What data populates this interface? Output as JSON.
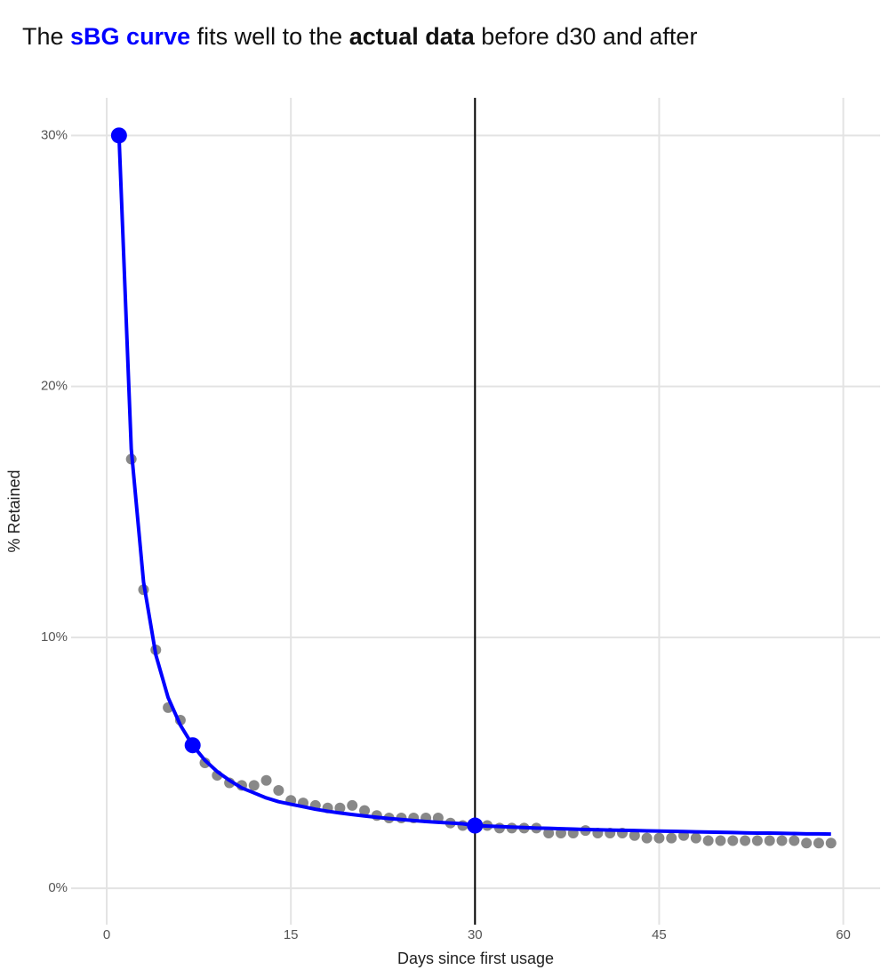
{
  "chart_data": {
    "type": "line",
    "title_parts": [
      {
        "text": "The "
      },
      {
        "text": "sBG curve",
        "bold": true,
        "color": "#0000ff"
      },
      {
        "text": " fits well to the "
      },
      {
        "text": "actual data",
        "bold": true
      },
      {
        "text": " before d30 and after"
      }
    ],
    "x_label": "Days since first usage",
    "y_label": "% Retained",
    "x": [
      1,
      2,
      3,
      4,
      5,
      6,
      7,
      8,
      9,
      10,
      11,
      12,
      13,
      14,
      15,
      16,
      17,
      18,
      19,
      20,
      21,
      22,
      23,
      24,
      25,
      26,
      27,
      28,
      29,
      30,
      31,
      32,
      33,
      34,
      35,
      36,
      37,
      38,
      39,
      40,
      41,
      42,
      43,
      44,
      45,
      46,
      47,
      48,
      49,
      50,
      51,
      52,
      53,
      54,
      55,
      56,
      57,
      58,
      59
    ],
    "series": [
      {
        "style": "points",
        "color": "#888888",
        "values": [
          30,
          17.1,
          11.9,
          9.5,
          7.2,
          6.7,
          5.7,
          5.0,
          4.5,
          4.2,
          4.1,
          4.1,
          4.3,
          3.9,
          3.5,
          3.4,
          3.3,
          3.2,
          3.2,
          3.3,
          3.1,
          2.9,
          2.8,
          2.8,
          2.8,
          2.8,
          2.8,
          2.6,
          2.5,
          2.6,
          2.5,
          2.4,
          2.4,
          2.4,
          2.4,
          2.2,
          2.2,
          2.2,
          2.3,
          2.2,
          2.2,
          2.2,
          2.1,
          2.0,
          2.0,
          2.0,
          2.1,
          2.0,
          1.9,
          1.9,
          1.9,
          1.9,
          1.9,
          1.9,
          1.9,
          1.9,
          1.8,
          1.8,
          1.8
        ]
      },
      {
        "style": "line",
        "color": "#0000ff",
        "values": [
          30,
          17.5,
          12.2,
          9.3,
          7.6,
          6.5,
          5.7,
          5.1,
          4.65,
          4.3,
          4.0,
          3.8,
          3.6,
          3.45,
          3.35,
          3.25,
          3.15,
          3.07,
          3.0,
          2.94,
          2.88,
          2.83,
          2.78,
          2.74,
          2.7,
          2.66,
          2.63,
          2.6,
          2.57,
          2.5,
          2.48,
          2.46,
          2.44,
          2.42,
          2.4,
          2.39,
          2.37,
          2.36,
          2.34,
          2.33,
          2.32,
          2.31,
          2.3,
          2.29,
          2.28,
          2.27,
          2.26,
          2.25,
          2.24,
          2.23,
          2.22,
          2.21,
          2.2,
          2.2,
          2.19,
          2.18,
          2.17,
          2.17,
          2.16
        ]
      }
    ],
    "highlights": {
      "x": [
        1,
        7,
        30
      ],
      "values": [
        30,
        5.7,
        2.5
      ],
      "color": "#0000ff"
    },
    "vlines": [
      30
    ],
    "xlim": [
      -2.9,
      63
    ],
    "ylim": [
      -1.45,
      31.5
    ],
    "xticks": [
      0,
      15,
      30,
      45,
      60
    ],
    "yticks": [
      {
        "value": 0,
        "label": "0%"
      },
      {
        "value": 10,
        "label": "10%"
      },
      {
        "value": 20,
        "label": "20%"
      },
      {
        "value": 30,
        "label": "30%"
      }
    ],
    "grid": true
  }
}
